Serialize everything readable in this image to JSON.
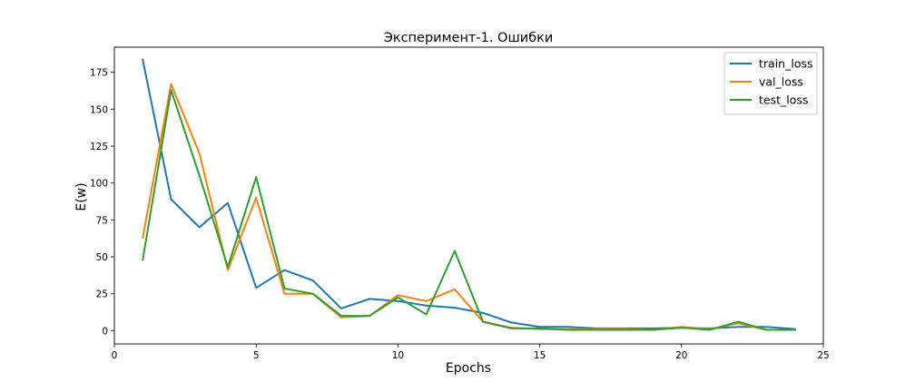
{
  "chart_data": {
    "type": "line",
    "title": "Эксперимент-1. Ошибки",
    "xlabel": "Epochs",
    "ylabel": "E(w)",
    "xlim": [
      0,
      25
    ],
    "ylim": [
      -9,
      192
    ],
    "xticks": [
      0,
      5,
      10,
      15,
      20,
      25
    ],
    "yticks": [
      0,
      25,
      50,
      75,
      100,
      125,
      150,
      175
    ],
    "grid": false,
    "legend_position": "top-right",
    "x": [
      1,
      2,
      3,
      4,
      5,
      6,
      7,
      8,
      9,
      10,
      11,
      12,
      13,
      14,
      15,
      16,
      17,
      18,
      19,
      20,
      21,
      22,
      23,
      24
    ],
    "series": [
      {
        "name": "train_loss",
        "color": "#1f77b4",
        "values": [
          183.5,
          89,
          70,
          86.5,
          29,
          41,
          34,
          15,
          21.5,
          20,
          17,
          15.5,
          12,
          5.5,
          2.5,
          2.5,
          1.5,
          1.5,
          1.5,
          2,
          1.5,
          2.5,
          2.5,
          1
        ]
      },
      {
        "name": "val_loss",
        "color": "#ff7f0e",
        "values": [
          63,
          167,
          120,
          41,
          90,
          25,
          25,
          9,
          10,
          24,
          20,
          28,
          6,
          2,
          1,
          1,
          1,
          1,
          0.5,
          2.5,
          1,
          5,
          0.5,
          0.5
        ]
      },
      {
        "name": "test_loss",
        "color": "#2ca02c",
        "values": [
          48,
          163,
          105,
          43,
          104,
          28.5,
          25,
          10,
          10,
          22.5,
          11,
          54,
          6,
          1.5,
          1.5,
          0.5,
          0.5,
          0.5,
          0.5,
          2,
          0.5,
          6,
          0.5,
          0.5
        ]
      }
    ]
  }
}
